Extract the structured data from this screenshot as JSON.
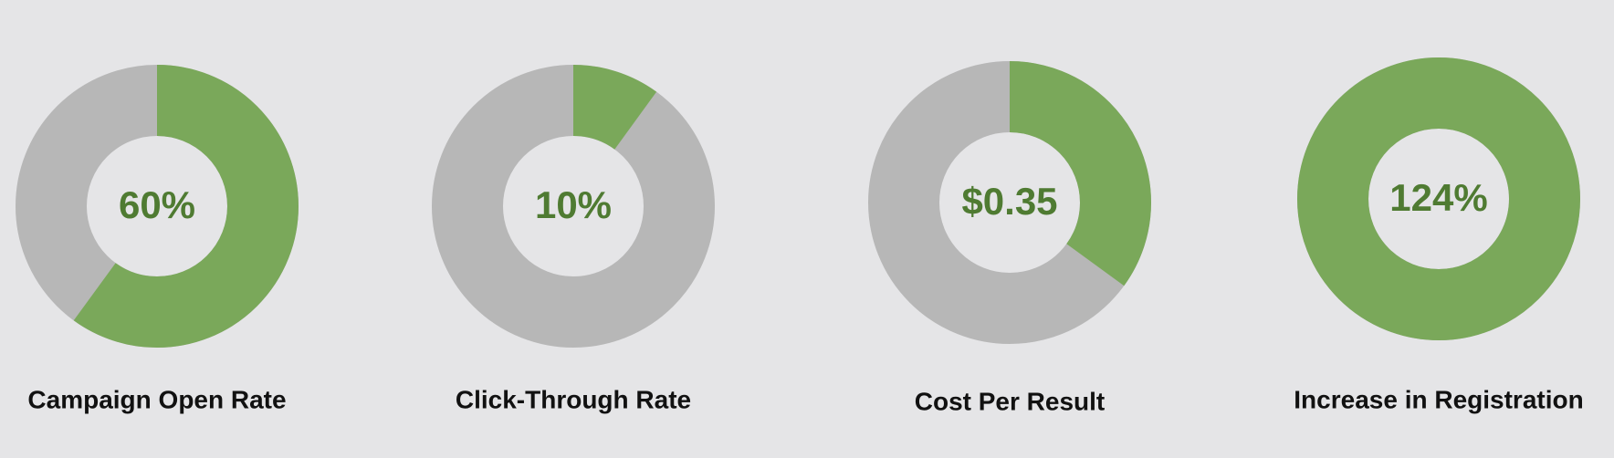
{
  "chart_data": [
    {
      "type": "donut",
      "title": "Campaign Open Rate",
      "values": [
        60
      ],
      "value_labels": [
        "60%"
      ],
      "ylim": [
        0,
        100
      ],
      "color": "#7aa85a",
      "track_color": "#b7b7b7"
    },
    {
      "type": "donut",
      "title": "Click-Through Rate",
      "values": [
        10
      ],
      "value_labels": [
        "10%"
      ],
      "ylim": [
        0,
        100
      ],
      "color": "#7aa85a",
      "track_color": "#b7b7b7"
    },
    {
      "type": "donut",
      "title": "Cost Per Result",
      "values": [
        0.35
      ],
      "value_labels": [
        "$0.35"
      ],
      "ylim": [
        0,
        1
      ],
      "color": "#7aa85a",
      "track_color": "#b7b7b7"
    },
    {
      "type": "donut",
      "title": "Increase in Registration",
      "values": [
        124
      ],
      "value_labels": [
        "124%"
      ],
      "ylim": [
        0,
        100
      ],
      "color": "#7aa85a",
      "track_color": "#b7b7b7"
    }
  ]
}
